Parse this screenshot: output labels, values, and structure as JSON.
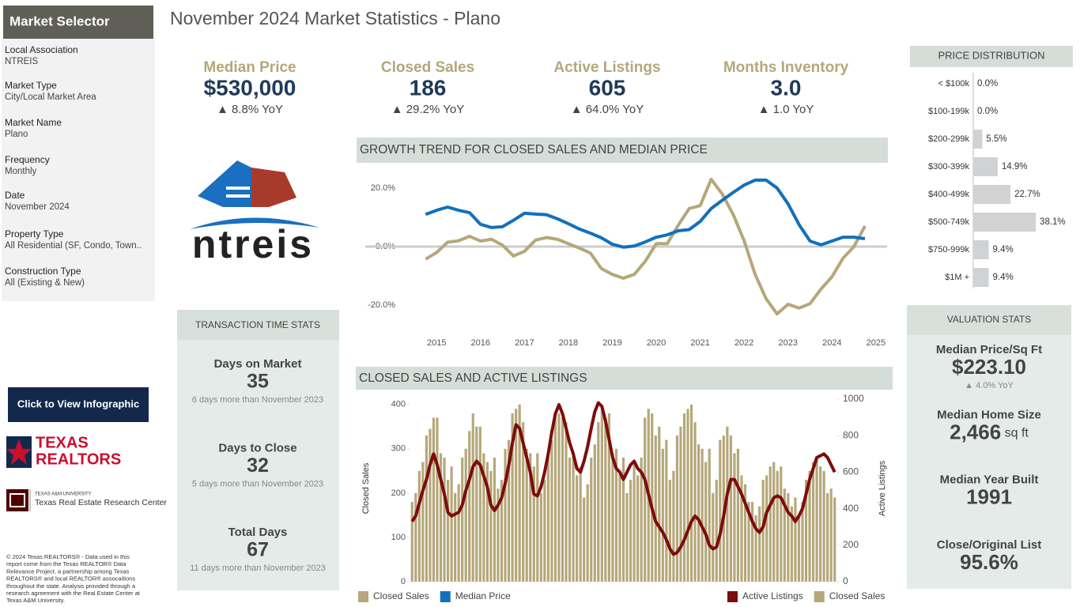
{
  "sidebar": {
    "title": "Market Selector",
    "fields": [
      {
        "label": "Local Association",
        "value": "NTREIS"
      },
      {
        "label": "Market Type",
        "value": "City/Local Market Area"
      },
      {
        "label": "Market Name",
        "value": "Plano"
      },
      {
        "label": "Frequency",
        "value": "Monthly"
      },
      {
        "label": "Date",
        "value": "November 2024"
      },
      {
        "label": "Property Type",
        "value": "All Residential (SF, Condo, Town.."
      },
      {
        "label": "Construction Type",
        "value": "All (Existing & New)"
      }
    ]
  },
  "header": {
    "title": "November 2024 Market Statistics - Plano"
  },
  "kpis": [
    {
      "label": "Median Price",
      "value": "$530,000",
      "change": "▲ 8.8% YoY"
    },
    {
      "label": "Closed Sales",
      "value": "186",
      "change": "▲ 29.2% YoY"
    },
    {
      "label": "Active Listings",
      "value": "605",
      "change": "▲ 64.0% YoY"
    },
    {
      "label": "Months Inventory",
      "value": "3.0",
      "change": "▲ 1.0 YoY"
    }
  ],
  "logos": {
    "ntreis": "ntreis",
    "texas_realtors": [
      "TEXAS",
      "REALTORS"
    ],
    "tamu": [
      "TEXAS A&M UNIVERSITY",
      "Texas Real Estate Research Center"
    ]
  },
  "button": "Click to View Infographic",
  "footer": [
    "© 2024 Texas REALTORS® - Data used in this",
    "report come from the Texas REALTOR® Data",
    "Relevance Project, a partnership among Texas",
    "REALTORS® and local REALTOR® assocaitions",
    "throughout the state. Analysis provided through a",
    "research agreement with the Real Estate Center at",
    "Texas A&M University."
  ],
  "transaction_stats": {
    "title": "TRANSACTION TIME STATS",
    "items": [
      {
        "label": "Days on Market",
        "value": "35",
        "note": "6 days more than November 2023"
      },
      {
        "label": "Days to Close",
        "value": "32",
        "note": "5 days more than November 2023"
      },
      {
        "label": "Total Days",
        "value": "67",
        "note": "11 days more than November 2023"
      }
    ]
  },
  "valuation_stats": {
    "title": "VALUATION STATS",
    "items": [
      {
        "label": "Median Price/Sq Ft",
        "value": "$223.10",
        "note": "▲ 4.0% YoY"
      },
      {
        "label": "Median Home Size",
        "value": "2,466",
        "unit": "sq ft"
      },
      {
        "label": "Median Year Built",
        "value": "1991"
      },
      {
        "label": "Close/Original List",
        "value": "95.6%"
      }
    ]
  },
  "chart_data": [
    {
      "type": "bar",
      "orientation": "horizontal",
      "title": "PRICE DISTRIBUTION",
      "categories": [
        "< $100k",
        "$100-199k",
        "$200-299k",
        "$300-399k",
        "$400-499k",
        "$500-749k",
        "$750-999k",
        "$1M +"
      ],
      "values": [
        0.0,
        0.0,
        5.5,
        14.9,
        22.7,
        38.1,
        9.4,
        9.4
      ],
      "value_labels": [
        "0.0%",
        "0.0%",
        "5.5%",
        "14.9%",
        "22.7%",
        "38.1%",
        "9.4%",
        "9.4%"
      ],
      "color": "#d0d2d3",
      "xlim": [
        0,
        40
      ]
    },
    {
      "type": "line",
      "title": "GROWTH TREND FOR CLOSED SALES AND MEDIAN PRICE",
      "x": [
        2014.75,
        2015.0,
        2015.25,
        2015.5,
        2015.75,
        2016.0,
        2016.25,
        2016.5,
        2016.75,
        2017.0,
        2017.25,
        2017.5,
        2017.75,
        2018.0,
        2018.25,
        2018.5,
        2018.75,
        2019.0,
        2019.25,
        2019.5,
        2019.75,
        2020.0,
        2020.25,
        2020.5,
        2020.75,
        2021.0,
        2021.25,
        2021.5,
        2021.75,
        2022.0,
        2022.25,
        2022.5,
        2022.75,
        2023.0,
        2023.25,
        2023.5,
        2023.75,
        2024.0,
        2024.25,
        2024.5,
        2024.75
      ],
      "series": [
        {
          "name": "Closed Sales",
          "color": "#b5a77a",
          "values": [
            -4.3,
            -2,
            1.5,
            2,
            3.5,
            1.9,
            2.5,
            0.5,
            -3.2,
            -1.6,
            2.2,
            3.1,
            2.5,
            1,
            -0.5,
            -2.2,
            -7.5,
            -9.5,
            -10.8,
            -9.5,
            -5,
            1,
            1,
            7.3,
            13,
            14,
            23,
            18,
            11,
            2,
            -9.5,
            -17.8,
            -23,
            -19.7,
            -21,
            -19.5,
            -14.5,
            -10.3,
            -4,
            0,
            7
          ]
        },
        {
          "name": "Median Price",
          "color": "#1170bd",
          "values": [
            11,
            12.4,
            13.5,
            12.4,
            11.6,
            7.6,
            6.5,
            6.8,
            9,
            11.4,
            11.1,
            10.9,
            9.5,
            7.8,
            6,
            4.6,
            3,
            0.8,
            -0.2,
            0.2,
            1.6,
            3.2,
            4,
            5.4,
            5.8,
            8.6,
            13,
            15.8,
            18.5,
            21,
            22.7,
            22.7,
            20,
            14.6,
            7.5,
            1.9,
            0.6,
            1.9,
            3.2,
            3.2,
            2.7
          ]
        }
      ],
      "xlim": [
        2014.6,
        2025.2
      ],
      "xticks": [
        2015,
        2016,
        2017,
        2018,
        2019,
        2020,
        2021,
        2022,
        2023,
        2024,
        2025
      ],
      "ylim": [
        -27,
        27
      ],
      "yticks": [
        {
          "value": 20,
          "label": "20.0%"
        },
        {
          "value": 0,
          "label": "0.0%"
        },
        {
          "value": -20,
          "label": "-20.0%"
        }
      ],
      "zero_line": true,
      "legend": "bottom-left"
    },
    {
      "type": "bar_line",
      "title": "CLOSED SALES AND ACTIVE LISTINGS",
      "y_label": "Closed Sales",
      "y2_label": "Active Listings",
      "series": [
        {
          "name": "Active Listings",
          "type": "line",
          "axis": "y2",
          "color": "#7d0c0c",
          "values": [
            330,
            360,
            430,
            500,
            560,
            640,
            700,
            640,
            560,
            480,
            380,
            360,
            370,
            380,
            420,
            500,
            560,
            630,
            660,
            640,
            580,
            520,
            420,
            390,
            420,
            460,
            540,
            640,
            760,
            860,
            840,
            760,
            680,
            600,
            480,
            470,
            520,
            600,
            700,
            820,
            920,
            970,
            920,
            840,
            760,
            700,
            620,
            600,
            660,
            740,
            840,
            930,
            980,
            960,
            880,
            780,
            680,
            620,
            600,
            560,
            600,
            640,
            660,
            620,
            600,
            560,
            480,
            400,
            330,
            300,
            270,
            230,
            180,
            150,
            160,
            190,
            230,
            280,
            330,
            360,
            340,
            300,
            260,
            200,
            180,
            190,
            260,
            360,
            480,
            560,
            560,
            520,
            480,
            430,
            380,
            330,
            290,
            270,
            300,
            380,
            420,
            460,
            470,
            460,
            420,
            380,
            360,
            330,
            360,
            400,
            480,
            560,
            620,
            680,
            690,
            700,
            680,
            640,
            600
          ]
        },
        {
          "name": "Closed Sales",
          "type": "bar",
          "color": "#b5a77a",
          "values": [
            180,
            200,
            250,
            270,
            330,
            345,
            370,
            370,
            290,
            280,
            230,
            260,
            200,
            220,
            280,
            300,
            340,
            380,
            350,
            350,
            290,
            270,
            250,
            280,
            210,
            230,
            300,
            320,
            380,
            390,
            400,
            360,
            300,
            290,
            260,
            290,
            200,
            230,
            290,
            320,
            370,
            380,
            370,
            360,
            280,
            290,
            240,
            260,
            190,
            220,
            280,
            310,
            360,
            390,
            370,
            380,
            290,
            300,
            250,
            280,
            200,
            230,
            270,
            240,
            280,
            370,
            390,
            380,
            330,
            350,
            300,
            320,
            230,
            250,
            330,
            350,
            380,
            390,
            400,
            360,
            310,
            300,
            270,
            300,
            200,
            230,
            320,
            330,
            350,
            330,
            290,
            300,
            240,
            220,
            180,
            180,
            150,
            170,
            230,
            240,
            260,
            270,
            250,
            260,
            210,
            200,
            170,
            190,
            150,
            180,
            230,
            250,
            270,
            280,
            260,
            250,
            200,
            210,
            190
          ]
        }
      ],
      "ylim": [
        0,
        412
      ],
      "yticks": [
        0,
        100,
        200,
        300,
        400
      ],
      "y2lim": [
        0,
        1000
      ],
      "y2ticks": [
        0,
        200,
        400,
        600,
        800,
        1000
      ],
      "legend": "bottom-right"
    }
  ]
}
